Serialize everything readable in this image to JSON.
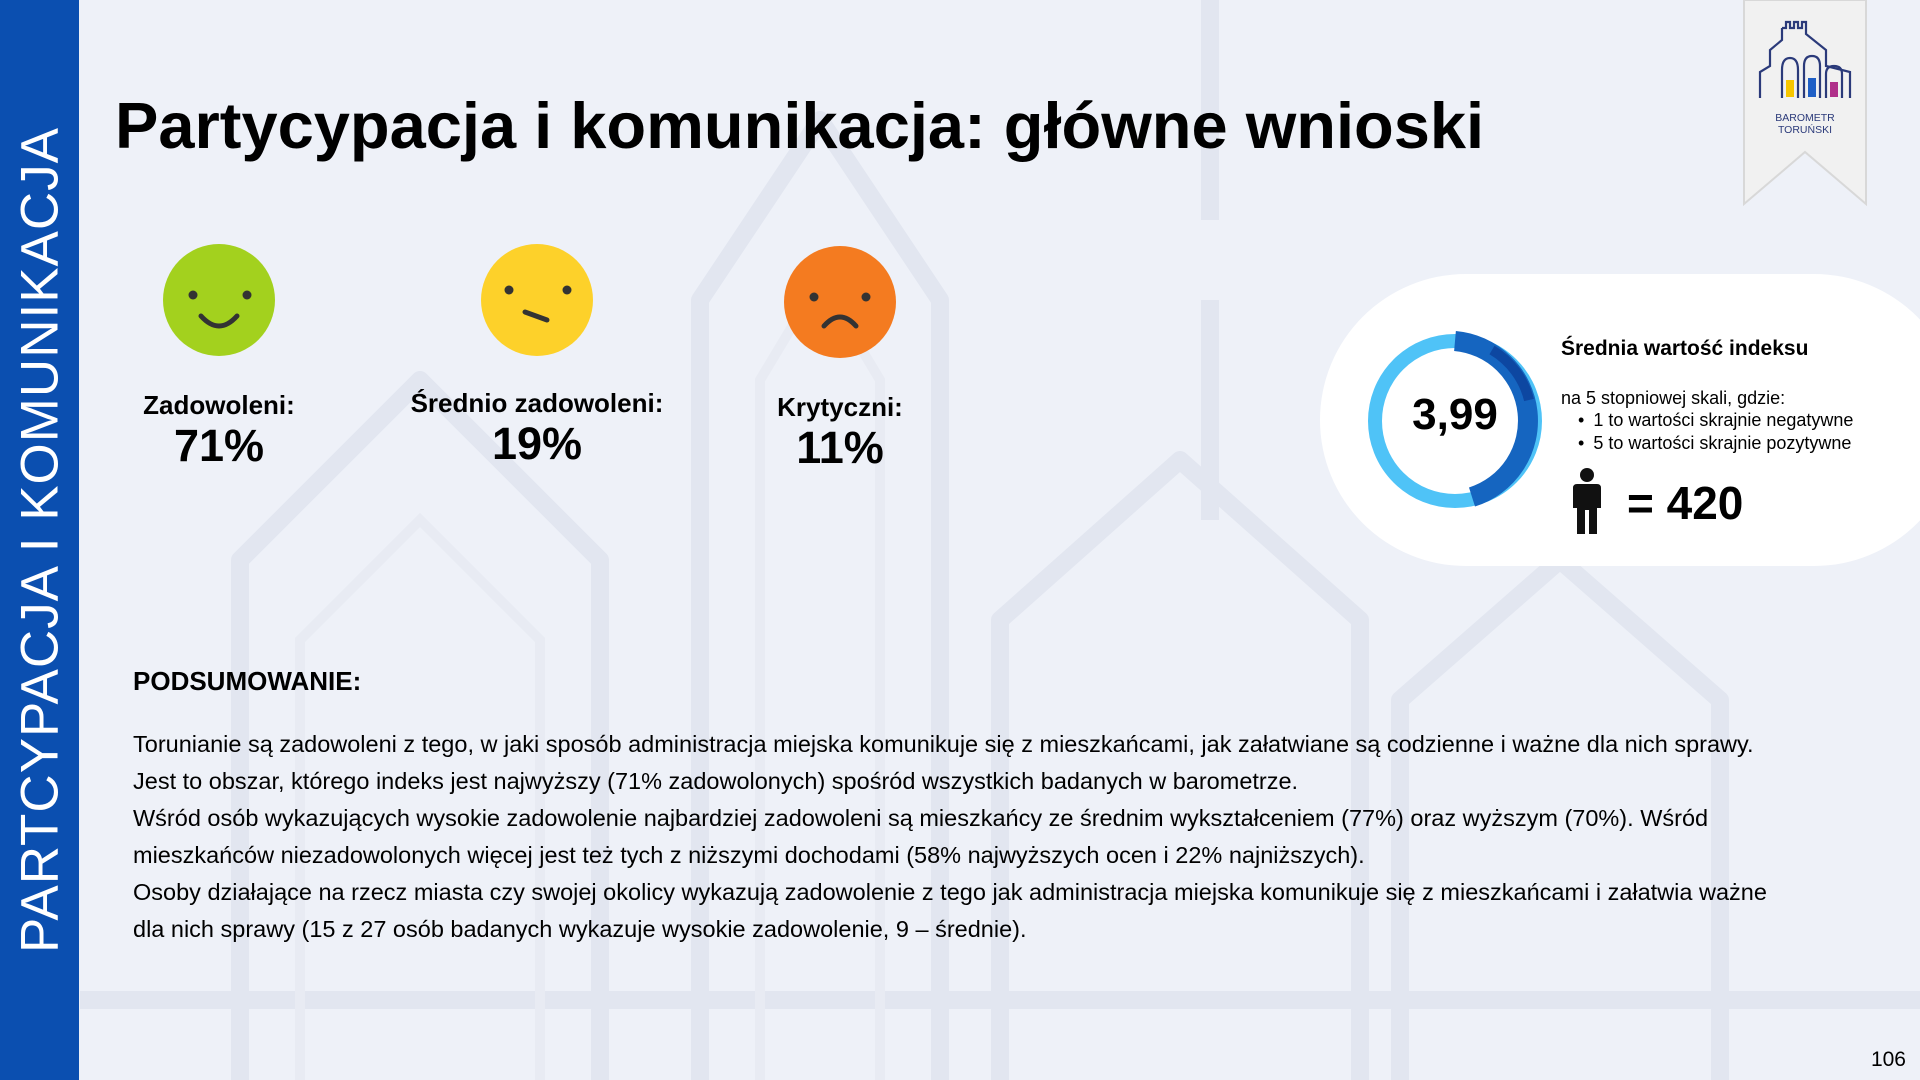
{
  "sidebar": {
    "label": "PARTCYPACJA I KOMUNIKACJA"
  },
  "header": {
    "title": "Partycypacja i komunikacja: główne wnioski"
  },
  "badge": {
    "line1": "BAROMETR",
    "line2": "TORUŃSKI"
  },
  "satisfaction": [
    {
      "label": "Zadowoleni:",
      "value": "71%",
      "icon": "smiling-face-icon",
      "color": "#a3d11e"
    },
    {
      "label": "Średnio zadowoleni:",
      "value": "19%",
      "icon": "neutral-face-icon",
      "color": "#fdd12a"
    },
    {
      "label": "Krytyczni:",
      "value": "11%",
      "icon": "frowning-face-icon",
      "color": "#f47b20"
    }
  ],
  "index": {
    "value": "3,99",
    "title": "Średnia wartość indeksu",
    "scale_note": "na 5 stopniowej skali, gdzie:",
    "scale_items": [
      "1 to wartości skrajnie negatywne",
      "5 to wartości skrajnie pozytywne"
    ],
    "respondents": "= 420",
    "ring_colors": [
      "#4fc3f7",
      "#1565c0"
    ]
  },
  "summary": {
    "heading": "PODSUMOWANIE:",
    "lines": [
      "Torunianie są zadowoleni z tego, w jaki sposób administracja miejska komunikuje się z mieszkańcami, jak załatwiane są codzienne i ważne dla nich sprawy.",
      "Jest to obszar, którego indeks jest najwyższy (71% zadowolonych) spośród wszystkich badanych w barometrze.",
      "Wśród osób wykazujących wysokie zadowolenie najbardziej zadowoleni są mieszkańcy ze średnim wykształceniem (77%) oraz wyższym (70%). Wśród",
      "mieszkańców niezadowolonych więcej jest też tych z niższymi dochodami (58% najwyższych ocen i 22% najniższych).",
      "Osoby działające na rzecz miasta czy swojej okolicy wykazują zadowolenie z tego jak administracja miejska komunikuje się z mieszkańcami i załatwia ważne",
      "dla nich sprawy (15 z 27 osób badanych wykazuje wysokie zadowolenie, 9 – średnie)."
    ]
  },
  "footer": {
    "page_number": "106"
  },
  "colors": {
    "sidebar": "#0b4fb0",
    "background": "#eef1f8"
  }
}
